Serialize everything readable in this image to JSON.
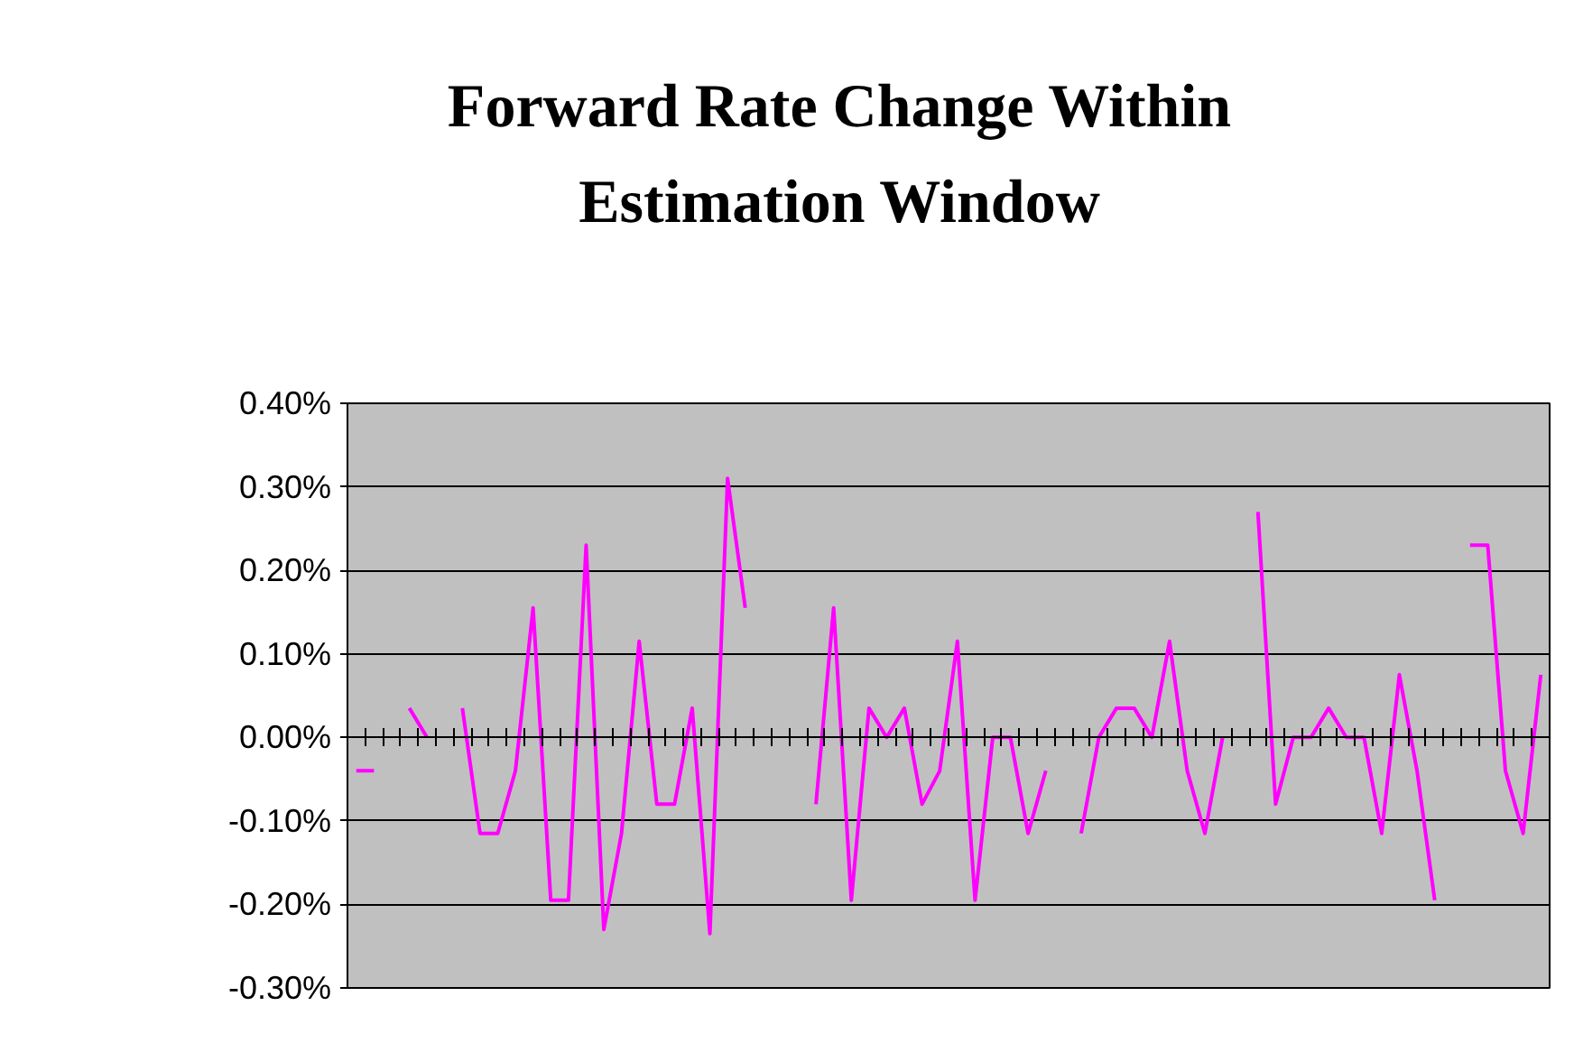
{
  "chart_data": {
    "type": "line",
    "title": "Forward Rate Change Within Estimation Window",
    "categories": [
      null,
      null,
      null,
      null,
      null,
      null,
      null,
      null,
      null,
      null,
      null,
      null,
      null,
      null,
      null,
      null,
      null,
      null,
      null,
      null,
      null,
      null,
      null,
      null,
      null,
      null,
      null,
      null,
      null,
      null,
      null,
      null,
      null,
      null,
      null,
      null,
      null,
      null,
      null,
      null,
      null,
      null,
      null,
      null,
      null,
      null,
      null,
      null,
      null,
      null,
      null,
      null,
      null,
      null,
      null,
      null,
      null,
      null,
      null,
      null,
      null,
      null,
      null,
      null,
      null,
      null,
      null,
      null
    ],
    "series": [
      {
        "color": "#ff00ff",
        "values": [
          -0.04,
          -0.04,
          null,
          0.035,
          0,
          null,
          0.035,
          -0.115,
          -0.115,
          -0.04,
          0.155,
          -0.195,
          -0.195,
          0.23,
          -0.23,
          -0.115,
          0.115,
          -0.08,
          -0.08,
          0.035,
          -0.235,
          0.31,
          0.155,
          null,
          null,
          null,
          -0.08,
          0.155,
          -0.195,
          0.035,
          0,
          0.035,
          -0.08,
          -0.04,
          0.115,
          -0.195,
          0,
          0,
          -0.115,
          -0.04,
          null,
          -0.115,
          0,
          0.035,
          0.035,
          0,
          0.115,
          -0.04,
          -0.115,
          0,
          null,
          0.27,
          -0.08,
          0,
          0,
          0.035,
          0,
          0,
          -0.115,
          0.075,
          -0.04,
          -0.195,
          null,
          0.23,
          0.23,
          -0.04,
          -0.115,
          0.075
        ]
      }
    ],
    "ylim": [
      -0.3,
      0.4
    ],
    "yticks": [
      {
        "value": -0.3,
        "label": "-0.30%"
      },
      {
        "value": -0.2,
        "label": "-0.20%"
      },
      {
        "value": -0.1,
        "label": "-0.10%"
      },
      {
        "value": 0,
        "label": "0.00%"
      },
      {
        "value": 0.1,
        "label": "0.10%"
      },
      {
        "value": 0.2,
        "label": "0.20%"
      },
      {
        "value": 0.3,
        "label": "0.30%"
      },
      {
        "value": 0.4,
        "label": "0.40%"
      }
    ],
    "grid": "y",
    "marker": "none",
    "line_style": "solid",
    "tick_labels": "y"
  }
}
